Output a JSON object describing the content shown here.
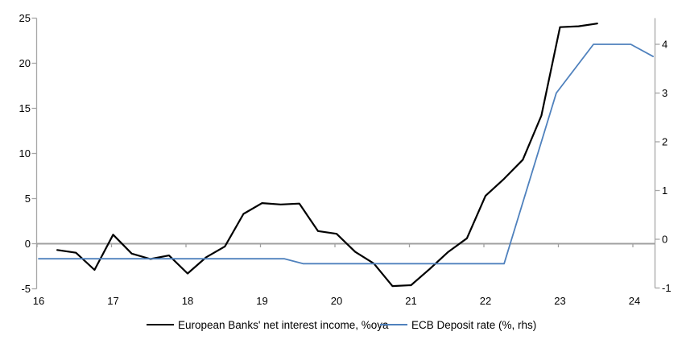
{
  "chart_data": {
    "type": "line",
    "x_axis": {
      "ticks": [
        16,
        17,
        18,
        19,
        20,
        21,
        22,
        23,
        24
      ],
      "range": [
        16,
        24.3
      ],
      "tick_on_zero_line": true
    },
    "left_axis": {
      "ticks": [
        25,
        20,
        15,
        10,
        5,
        0,
        -5
      ],
      "range": [
        -5,
        25
      ]
    },
    "right_axis": {
      "ticks": [
        4,
        3,
        2,
        1,
        0,
        -1
      ],
      "range": [
        -1,
        4.5
      ]
    },
    "zero_line": true,
    "grid": "off",
    "legend_position": "bottom",
    "series": [
      {
        "name": "European Banks' net interest income, %oya",
        "axis": "left",
        "color": "#000000",
        "width": 2.2,
        "x": [
          16.25,
          16.5,
          16.75,
          17.0,
          17.25,
          17.5,
          17.75,
          18.0,
          18.25,
          18.5,
          18.75,
          19.0,
          19.25,
          19.5,
          19.75,
          20.0,
          20.25,
          20.5,
          20.75,
          21.0,
          21.25,
          21.5,
          21.75,
          22.0,
          22.25,
          22.5,
          22.75,
          23.0,
          23.25,
          23.5
        ],
        "values": [
          -0.7,
          -1.0,
          -2.9,
          1.0,
          -1.1,
          -1.7,
          -1.3,
          -3.3,
          -1.5,
          -0.3,
          3.3,
          4.5,
          4.35,
          4.45,
          1.4,
          1.1,
          -0.9,
          -2.2,
          -4.7,
          -4.6,
          -2.8,
          -0.9,
          0.6,
          5.3,
          7.2,
          9.3,
          14.2,
          24.0,
          24.1,
          24.4
        ]
      },
      {
        "name": "ECB Deposit rate (%, rhs)",
        "axis": "right",
        "color": "#4f81bd",
        "width": 1.8,
        "x": [
          16.0,
          19.3,
          19.55,
          22.25,
          22.95,
          23.45,
          23.95,
          24.25
        ],
        "values": [
          -0.4,
          -0.4,
          -0.5,
          -0.5,
          3.0,
          4.0,
          4.0,
          3.75
        ]
      }
    ],
    "legend": [
      {
        "label": "European Banks' net interest income, %oya",
        "color": "#000000"
      },
      {
        "label": "ECB Deposit rate (%, rhs)",
        "color": "#4f81bd"
      }
    ]
  },
  "colors": {
    "series_black": "#000000",
    "series_blue": "#4f81bd",
    "axis_gray": "#a6a6a6",
    "zero_line_gray": "#a0a0a0",
    "text": "#000000",
    "background": "#ffffff"
  }
}
